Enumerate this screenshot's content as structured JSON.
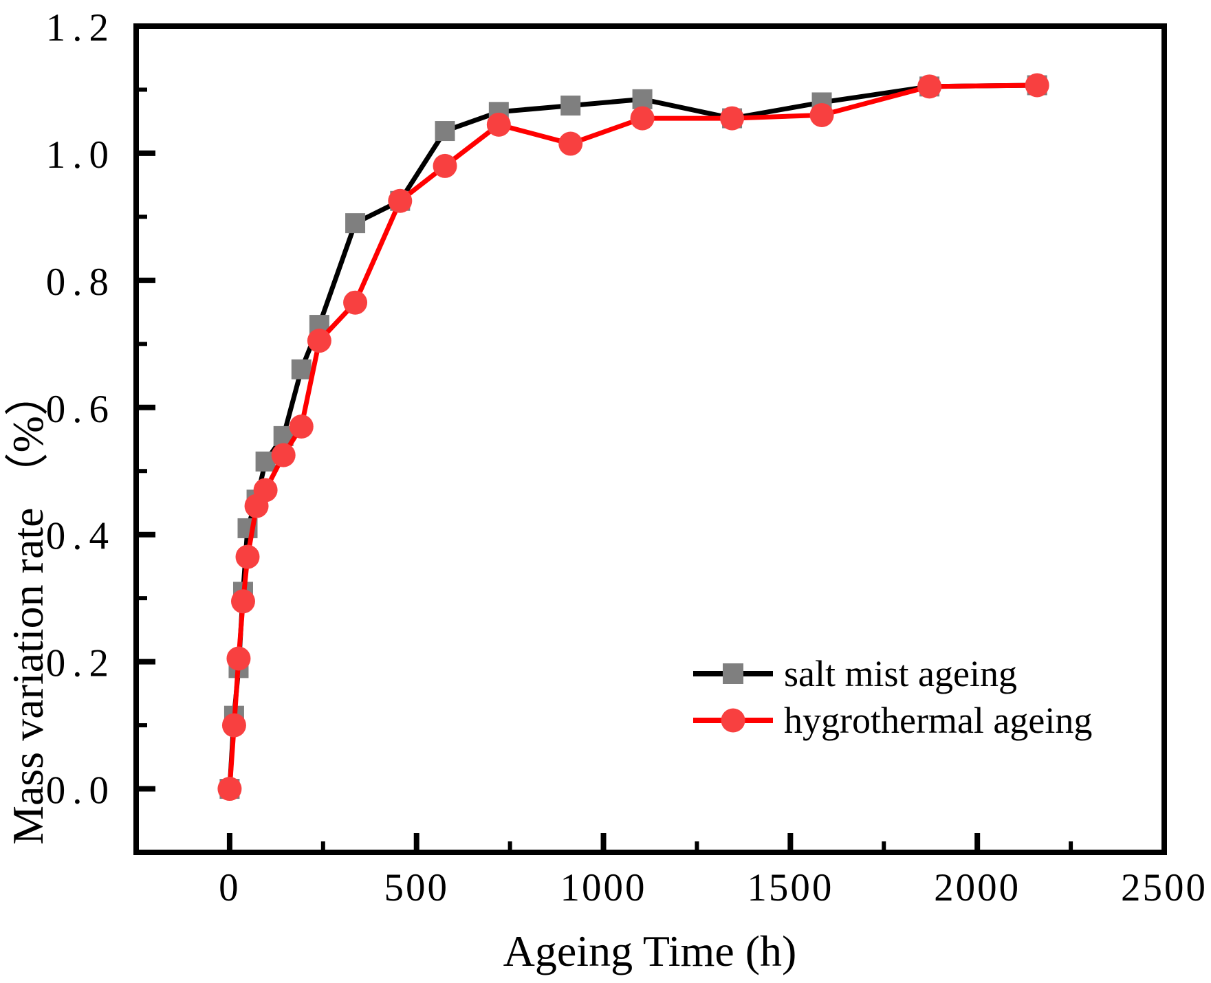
{
  "chart_data": {
    "type": "line",
    "title": "",
    "xlabel": "Ageing Time (h)",
    "ylabel": "Mass variation rate （%）",
    "grid": false,
    "background_color": "#ffffff",
    "axis_color": "#000000",
    "legend": {
      "position": "lower right"
    },
    "x_axis": {
      "range": [
        -250,
        2500
      ],
      "major_ticks": [
        0,
        500,
        1000,
        1500,
        2000,
        2500
      ],
      "major_tick_labels": [
        "0",
        "500",
        "1000",
        "1500",
        "2000",
        "2500"
      ],
      "minor_ticks": [
        250,
        750,
        1250,
        1750,
        2250
      ]
    },
    "y_axis": {
      "range": [
        -0.1,
        1.2
      ],
      "major_ticks": [
        0.0,
        0.2,
        0.4,
        0.6,
        0.8,
        1.0,
        1.2
      ],
      "major_tick_labels": [
        "0.0",
        "0.2",
        "0.4",
        "0.6",
        "0.8",
        "1.0",
        "1.2"
      ],
      "minor_ticks": [
        0.1,
        0.3,
        0.5,
        0.7,
        0.9,
        1.1
      ]
    },
    "x": [
      0,
      12,
      24,
      36,
      48,
      72,
      96,
      144,
      192,
      240,
      336,
      456,
      576,
      720,
      912,
      1104,
      1344,
      1584,
      1872,
      2160
    ],
    "series": [
      {
        "name": "salt mist ageing",
        "line_color": "#000000",
        "marker": "square",
        "marker_color": "#7f7f7f",
        "values": [
          0.0,
          0.115,
          0.19,
          0.31,
          0.41,
          0.455,
          0.515,
          0.555,
          0.66,
          0.73,
          0.89,
          0.925,
          1.035,
          1.065,
          1.075,
          1.085,
          1.055,
          1.08,
          1.105,
          1.107
        ]
      },
      {
        "name": "hygrothermal ageing",
        "line_color": "#ff0000",
        "marker": "circle",
        "marker_color": "#f84040",
        "values": [
          0.0,
          0.1,
          0.205,
          0.295,
          0.365,
          0.445,
          0.47,
          0.525,
          0.57,
          0.705,
          0.765,
          0.925,
          0.98,
          1.045,
          1.015,
          1.055,
          1.055,
          1.06,
          1.105,
          1.107
        ]
      }
    ]
  }
}
